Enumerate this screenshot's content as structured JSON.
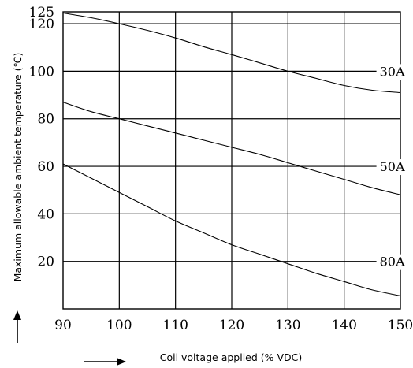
{
  "chart_data": {
    "type": "line",
    "xlabel": "Coil voltage applied (% VDC)",
    "ylabel": "Maximum allowable ambient temperature (℃)",
    "xlim": [
      90,
      150
    ],
    "ylim": [
      0,
      125
    ],
    "x_ticks": [
      "90",
      "100",
      "110",
      "120",
      "130",
      "140",
      "150"
    ],
    "y_ticks": [
      "125",
      "120",
      "100",
      "80",
      "60",
      "40",
      "20"
    ],
    "grid": true,
    "series": [
      {
        "name": "30A",
        "x": [
          90,
          95,
          100,
          105,
          110,
          115,
          120,
          125,
          130,
          135,
          140,
          145,
          150
        ],
        "y": [
          124.5,
          122.5,
          120,
          117.2,
          114,
          110.3,
          107,
          103.5,
          100,
          97,
          94,
          92,
          91
        ]
      },
      {
        "name": "50A",
        "x": [
          90,
          95,
          100,
          105,
          110,
          115,
          120,
          125,
          130,
          135,
          140,
          145,
          150
        ],
        "y": [
          87,
          83,
          80,
          77,
          74,
          71,
          68,
          65,
          61.5,
          58,
          54.5,
          51,
          48
        ]
      },
      {
        "name": "80A",
        "x": [
          90,
          95,
          100,
          105,
          110,
          115,
          120,
          125,
          130,
          135,
          140,
          145,
          150
        ],
        "y": [
          61,
          55,
          49,
          43,
          37,
          32,
          27,
          23,
          19,
          15,
          11.5,
          8,
          5.5
        ]
      }
    ]
  }
}
